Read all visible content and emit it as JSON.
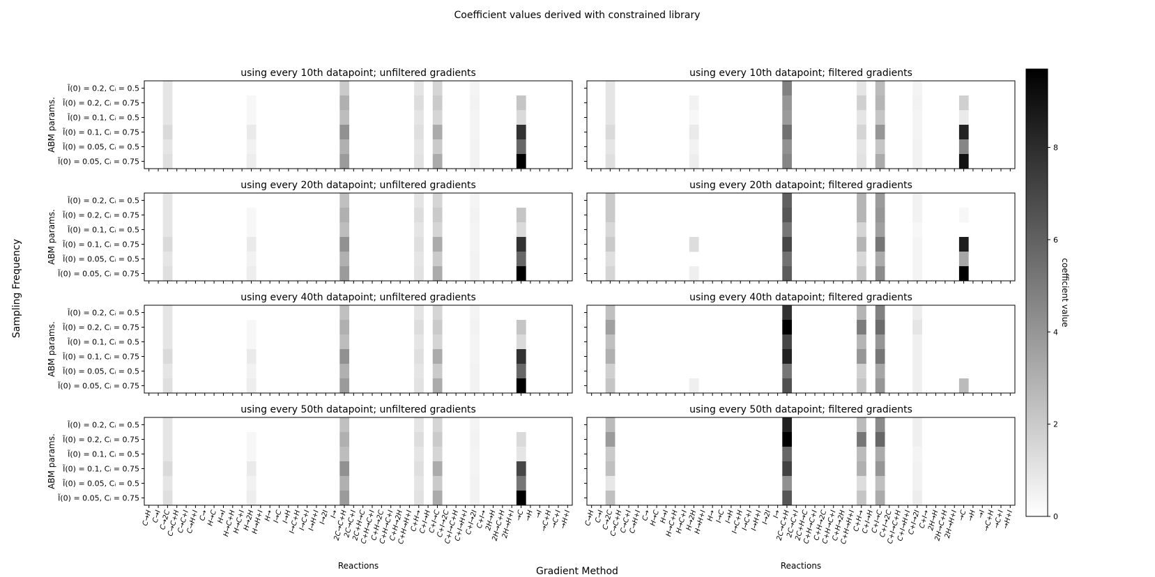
{
  "chart_data": {
    "type": "heatmap",
    "title": "Coefficient values derived with constrained library",
    "fig_ylabel": "Sampling Frequency",
    "fig_xlabel": "Gradient Method",
    "panel_ylabel": "ABM params.",
    "panel_xlabel": "Reactions",
    "colormap": "gray_r",
    "colorbar": {
      "label": "coefficient value",
      "vmin": 0,
      "vmax": 9.7,
      "ticks": [
        0,
        2,
        4,
        6,
        8
      ]
    },
    "rows": [
      "Ĩ(0) = 0.2, Cᵢ = 0.5",
      "Ĩ(0) = 0.2, Cᵢ = 0.75",
      "Ĩ(0) = 0.1, Cᵢ = 0.5",
      "Ĩ(0) = 0.1, Cᵢ = 0.75",
      "Ĩ(0) = 0.05, Cᵢ = 0.5",
      "Ĩ(0) = 0.05, Cᵢ = 0.75"
    ],
    "columns": [
      "C→H",
      "C→I",
      "C→2C",
      "C→C+H",
      "C→C+I",
      "C→H+I",
      "C→",
      "H→C",
      "H→I",
      "H→C+H",
      "H→C+I",
      "H→2H",
      "H→H+I",
      "H→",
      "I→C",
      "I→H",
      "I→C+H",
      "I→C+I",
      "I→H+I",
      "I→2I",
      "I→",
      "2C→C+H",
      "2C→C+I",
      "2C+H→C",
      "C+H→C+I",
      "C+H→2C",
      "C+H→C+I",
      "C+H→2H",
      "C+H→H+I",
      "C+H→",
      "C+I→H",
      "C+I→C",
      "C+I→2C",
      "C+I→C+H",
      "C+I→H+I",
      "C+I→2I",
      "C+I→",
      "2H→H",
      "2H→C+H",
      "2H→H+I",
      "→C",
      "→H",
      "→I",
      "→C+H",
      "→C+I",
      "→H+I"
    ],
    "panels": [
      {
        "title": "using every 10th datapoint; unfiltered gradients",
        "col": 0,
        "row": 0,
        "cells": {
          "2": [
            1,
            1,
            1,
            1.4,
            1,
            1.2
          ],
          "11": [
            0,
            0.3,
            0.3,
            0.8,
            0.5,
            0.7
          ],
          "21": [
            2,
            3,
            2.5,
            4.2,
            3,
            3.8
          ],
          "29": [
            1,
            1.3,
            1,
            1.2,
            1,
            1.1
          ],
          "31": [
            1.6,
            2,
            1.6,
            3.2,
            2,
            3.2
          ],
          "35": [
            0.4,
            0.5,
            0.4,
            0.4,
            0.5,
            0.5
          ],
          "40": [
            0,
            2.2,
            1.4,
            7.8,
            5.8,
            9.7
          ]
        }
      },
      {
        "title": "using every 10th datapoint; filtered gradients",
        "col": 1,
        "row": 0,
        "cells": {
          "2": [
            1,
            1,
            1,
            1.4,
            1,
            1.2
          ],
          "11": [
            0,
            0.5,
            0.3,
            0.8,
            0.5,
            0.7
          ],
          "21": [
            4.8,
            4,
            3.8,
            5.4,
            4.2,
            4.6
          ],
          "29": [
            1,
            1.8,
            1,
            1.6,
            1,
            1.1
          ],
          "31": [
            2.6,
            2.8,
            2.2,
            4,
            2.2,
            3.2
          ],
          "35": [
            0.4,
            0.5,
            0.4,
            0.4,
            0.5,
            0.5
          ],
          "40": [
            0,
            1.8,
            0.8,
            8.4,
            4.6,
            9
          ]
        }
      },
      {
        "title": "using every 20th datapoint; unfiltered gradients",
        "col": 0,
        "row": 1,
        "cells": {
          "2": [
            1,
            1,
            1,
            1.4,
            1,
            1.2
          ],
          "11": [
            0,
            0.3,
            0.3,
            0.8,
            0.5,
            0.7
          ],
          "21": [
            2.4,
            3,
            2.5,
            4.2,
            3,
            3.8
          ],
          "29": [
            1,
            1.3,
            1,
            1.2,
            1,
            1.1
          ],
          "31": [
            1.6,
            2,
            1.6,
            3.2,
            2,
            3.2
          ],
          "35": [
            0.4,
            0.5,
            0.4,
            0.4,
            0.5,
            0.5
          ],
          "40": [
            0,
            2.2,
            1.4,
            7.8,
            5.8,
            9.7
          ]
        }
      },
      {
        "title": "using every 20th datapoint; filtered gradients",
        "col": 1,
        "row": 1,
        "cells": {
          "2": [
            2,
            2,
            1.5,
            2,
            1.2,
            1.6
          ],
          "11": [
            0,
            0,
            0,
            1.3,
            0,
            0.6
          ],
          "21": [
            6,
            6.4,
            5.2,
            7,
            5.4,
            6.2
          ],
          "29": [
            2.8,
            2.8,
            1.6,
            2.8,
            1.5,
            2.2
          ],
          "31": [
            3.8,
            4,
            3.6,
            5.2,
            3.2,
            4.4
          ],
          "35": [
            0.5,
            0.5,
            0.3,
            0.4,
            0.4,
            0.4
          ],
          "40": [
            0,
            0.3,
            0,
            8.6,
            3.4,
            9.7
          ]
        }
      },
      {
        "title": "using every 40th datapoint; unfiltered gradients",
        "col": 0,
        "row": 2,
        "cells": {
          "2": [
            1,
            1,
            1,
            1.4,
            1,
            1.2
          ],
          "11": [
            0,
            0.3,
            0.3,
            0.8,
            0.5,
            0.7
          ],
          "21": [
            2.4,
            3,
            2.5,
            4.2,
            3,
            3.8
          ],
          "29": [
            1,
            1.3,
            1,
            1.2,
            1,
            1.1
          ],
          "31": [
            1.6,
            2,
            1.6,
            3.2,
            2,
            3.2
          ],
          "35": [
            0.4,
            0.5,
            0.4,
            0.4,
            0.5,
            0.5
          ],
          "40": [
            0,
            2.2,
            1.4,
            7.8,
            5.8,
            9.7
          ]
        }
      },
      {
        "title": "using every 40th datapoint; filtered gradients",
        "col": 1,
        "row": 2,
        "cells": {
          "2": [
            2.4,
            3.6,
            2.4,
            3,
            1.8,
            2.2
          ],
          "11": [
            0,
            0,
            0,
            0,
            0,
            0.6
          ],
          "21": [
            7.8,
            9.7,
            7,
            8.4,
            5.2,
            6.6
          ],
          "29": [
            2.8,
            5,
            2.8,
            4,
            1.8,
            2.2
          ],
          "31": [
            4.8,
            5.6,
            4,
            5.2,
            3.4,
            4
          ],
          "35": [
            0.7,
            1,
            0.6,
            0.6,
            0.6,
            0.6
          ],
          "40": [
            0,
            0,
            0,
            0,
            0,
            2.6
          ]
        }
      },
      {
        "title": "using every 50th datapoint; unfiltered gradients",
        "col": 0,
        "row": 3,
        "cells": {
          "2": [
            1,
            1,
            1,
            1.4,
            1,
            1.2
          ],
          "11": [
            0,
            0.3,
            0.3,
            0.8,
            0.5,
            0.7
          ],
          "21": [
            2.4,
            3,
            2.5,
            4.2,
            3,
            3.8
          ],
          "29": [
            1,
            1.3,
            1,
            1.2,
            1,
            1.1
          ],
          "31": [
            1.6,
            2,
            1.6,
            3.2,
            2,
            3.2
          ],
          "35": [
            0.4,
            0.5,
            0.4,
            0.4,
            0.5,
            0.5
          ],
          "40": [
            0,
            1.4,
            1,
            7,
            5.2,
            9.7
          ]
        }
      },
      {
        "title": "using every 50th datapoint; filtered gradients",
        "col": 1,
        "row": 3,
        "cells": {
          "2": [
            2.6,
            3.8,
            2,
            2.4,
            0.9,
            2.4
          ],
          "11": [
            0,
            0,
            0,
            0,
            0,
            0
          ],
          "21": [
            8.4,
            9.7,
            5.8,
            7.2,
            4.2,
            6.4
          ],
          "29": [
            2.6,
            5.2,
            2.6,
            3,
            1.3,
            2.2
          ],
          "31": [
            4.4,
            5.8,
            3.2,
            4,
            2.4,
            3.2
          ],
          "35": [
            0.6,
            0.6,
            0.4,
            0.5,
            0.5,
            0.7
          ],
          "40": [
            0,
            0,
            0,
            0,
            0,
            0
          ]
        }
      }
    ]
  }
}
